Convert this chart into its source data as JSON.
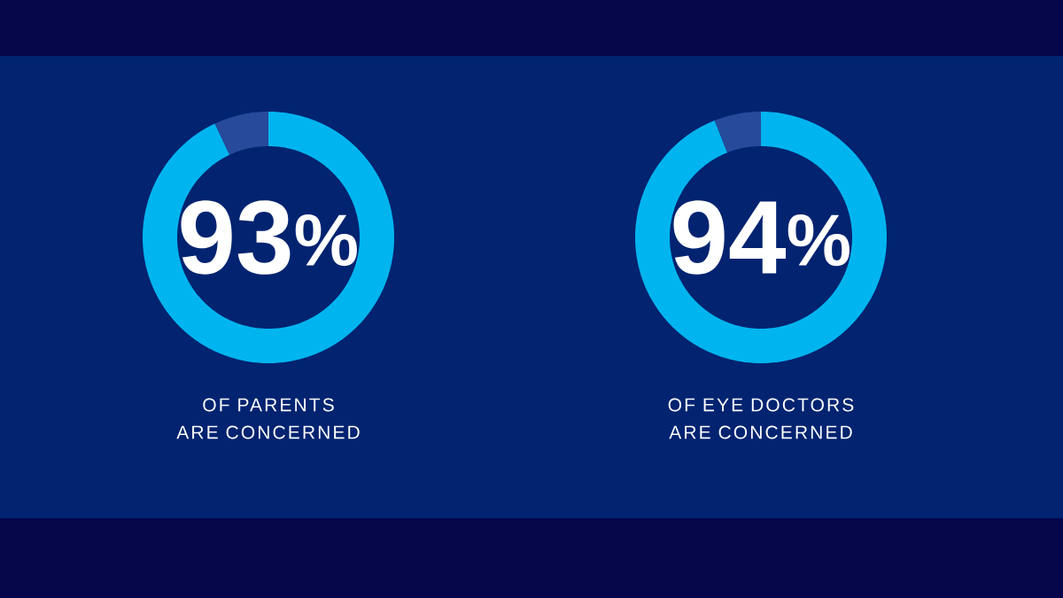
{
  "chart_data": [
    {
      "type": "donut",
      "title": "OF PARENTS",
      "subtitle": "ARE CONCERNED",
      "categories": [
        null,
        null
      ],
      "values": [
        93,
        7
      ],
      "colors": [
        "#00b5ef",
        "#274a9b"
      ],
      "value_labels": [
        "93$^{%}$",
        null
      ]
    },
    {
      "type": "donut",
      "title": "OF EYE DOCTORS",
      "subtitle": "ARE CONCERNED",
      "categories": [
        null,
        null
      ],
      "values": [
        94,
        6
      ],
      "colors": [
        "#00b5ef",
        "#274a9b"
      ],
      "value_labels": [
        "94$^{%}$",
        null
      ]
    }
  ]
}
